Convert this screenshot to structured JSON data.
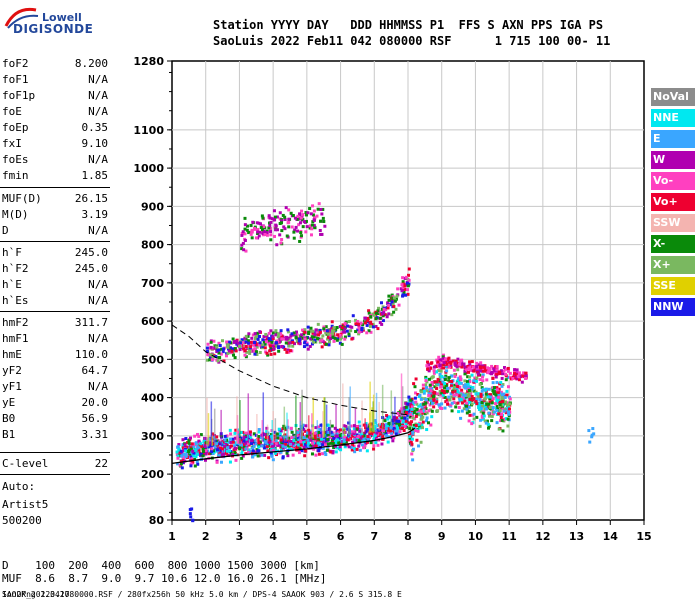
{
  "logo": {
    "top": "Lowell",
    "bottom": "DIGISONDE"
  },
  "header": {
    "line1": "Station YYYY DAY   DDD HHMMSS P1  FFS S AXN PPS IGA PS",
    "line2": "SaoLuis 2022 Feb11 042 080000 RSF      1 715 100 00- 11"
  },
  "params": [
    {
      "name": "foF2",
      "value": "8.200"
    },
    {
      "name": "foF1",
      "value": "N/A"
    },
    {
      "name": "foF1p",
      "value": "N/A"
    },
    {
      "name": "foE",
      "value": "N/A"
    },
    {
      "name": "foEp",
      "value": "0.35"
    },
    {
      "name": "fxI",
      "value": "9.10"
    },
    {
      "name": "foEs",
      "value": "N/A"
    },
    {
      "name": "fmin",
      "value": "1.85"
    },
    {
      "name": "MUF(D)",
      "value": "26.15"
    },
    {
      "name": "M(D)",
      "value": "3.19"
    },
    {
      "name": "D",
      "value": "N/A"
    },
    {
      "name": "h`F",
      "value": "245.0"
    },
    {
      "name": "h`F2",
      "value": "245.0"
    },
    {
      "name": "h`E",
      "value": "N/A"
    },
    {
      "name": "h`Es",
      "value": "N/A"
    },
    {
      "name": "hmF2",
      "value": "311.7"
    },
    {
      "name": "hmF1",
      "value": "N/A"
    },
    {
      "name": "hmE",
      "value": "110.0"
    },
    {
      "name": "yF2",
      "value": "64.7"
    },
    {
      "name": "yF1",
      "value": "N/A"
    },
    {
      "name": "yE",
      "value": "20.0"
    },
    {
      "name": "B0",
      "value": "56.9"
    },
    {
      "name": "B1",
      "value": "3.31"
    },
    {
      "name": "C-level",
      "value": "22"
    }
  ],
  "autoscaling": {
    "label": "Auto:",
    "artist": "Artist5",
    "number": "500200"
  },
  "legend": [
    {
      "label": "NoVal",
      "color": "#8c8c8c"
    },
    {
      "label": "NNE",
      "color": "#00e8f0"
    },
    {
      "label": "E",
      "color": "#3aa6ff"
    },
    {
      "label": "W",
      "color": "#b000b0"
    },
    {
      "label": "Vo-",
      "color": "#ff40c0"
    },
    {
      "label": "Vo+",
      "color": "#ee0030"
    },
    {
      "label": "SSW",
      "color": "#f4b4b0"
    },
    {
      "label": "X-",
      "color": "#0a8a0a"
    },
    {
      "label": "X+",
      "color": "#7ab860"
    },
    {
      "label": "SSE",
      "color": "#e0d000"
    },
    {
      "label": "NNW",
      "color": "#1a1ae8"
    }
  ],
  "footer": {
    "d_row": "D    100  200  400  600  800 1000 1500 3000 [km]",
    "muf_row": "MUF  8.6  8.7  9.0  9.7 10.6 12.0 16.0 26.1 [MHz]",
    "file_line": "SAOOK_2022042080000.RSF / 280fx256h 50 kHz 5.0 km / DPS-4 SAAOK 903 / 2.6 S 315.8 E",
    "version": "Ion2Png 1.3.17"
  },
  "chart_data": {
    "type": "scatter",
    "x_ticks": [
      "1",
      "2",
      "3",
      "4",
      "5",
      "6",
      "7",
      "8",
      "9",
      "10",
      "11",
      "12",
      "13",
      "14",
      "15"
    ],
    "y_ticks": [
      "80",
      "200",
      "300",
      "400",
      "500",
      "600",
      "700",
      "800",
      "900",
      "1000",
      "1100",
      "1280"
    ],
    "xlim": [
      1,
      15
    ],
    "ylim": [
      80,
      1280
    ],
    "grid": true,
    "profile_curve": {
      "x": [
        1.0,
        2.0,
        3.0,
        4.0,
        5.0,
        6.0,
        7.0,
        7.5,
        8.0,
        8.2
      ],
      "y": [
        228,
        240,
        250,
        258,
        266,
        276,
        288,
        297,
        308,
        320
      ]
    },
    "muf_curve": {
      "x": [
        1.0,
        1.5,
        2.0,
        3.0,
        4.0,
        5.0,
        6.0,
        7.0,
        8.0,
        8.1
      ],
      "y": [
        590,
        560,
        520,
        470,
        430,
        400,
        380,
        365,
        355,
        350
      ]
    },
    "trace_o": {
      "x": [
        1.1,
        2.0,
        3.0,
        4.0,
        5.0,
        6.0,
        7.0,
        7.6,
        8.0,
        8.2
      ],
      "y": [
        262,
        272,
        280,
        286,
        292,
        298,
        310,
        330,
        370,
        420
      ]
    },
    "trace_x": {
      "x": [
        8.0,
        8.5,
        9.0,
        9.5,
        10.0,
        10.5,
        11.0
      ],
      "y": [
        300,
        390,
        440,
        420,
        400,
        390,
        385
      ]
    },
    "multi_hop": {
      "x": [
        2.0,
        3.0,
        4.0,
        5.0,
        6.0,
        7.0,
        7.5,
        8.0
      ],
      "y": [
        520,
        540,
        550,
        560,
        575,
        610,
        650,
        710
      ]
    },
    "three_hop": {
      "x": [
        3.0,
        3.5,
        4.0,
        4.5,
        5.0,
        5.5
      ],
      "y": [
        820,
        840,
        850,
        860,
        865,
        875
      ]
    },
    "spread_band": {
      "x": [
        8.5,
        9.0,
        9.5,
        10.0,
        10.5,
        11.0,
        11.5
      ],
      "y": [
        480,
        500,
        490,
        480,
        475,
        465,
        460
      ]
    },
    "isolated": {
      "x": [
        13.4,
        1.5
      ],
      "y": [
        305,
        95
      ]
    }
  }
}
